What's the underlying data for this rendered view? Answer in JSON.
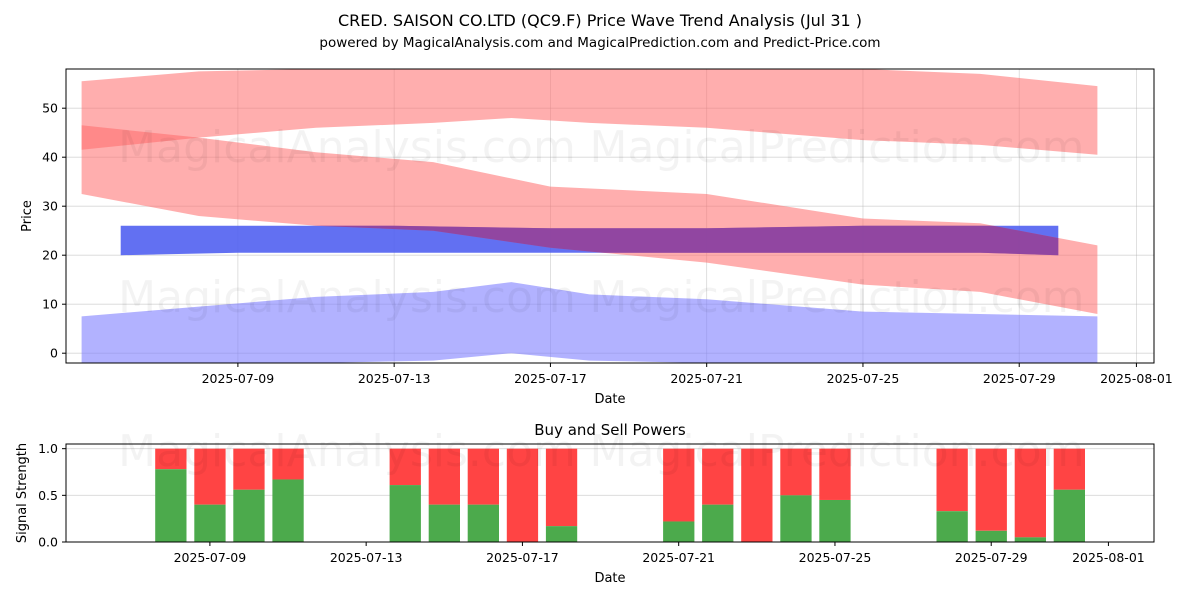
{
  "header": {
    "title": "CRED. SAISON CO.LTD (QC9.F) Price Wave Trend Analysis (Jul 31 )",
    "subtitle": "powered by MagicalAnalysis.com and MagicalPrediction.com and Predict-Price.com"
  },
  "watermarks": [
    "MagicalAnalysis.com",
    "MagicalPrediction.com"
  ],
  "colors": {
    "red_band": "#ff6b6b",
    "blue_band": "#7b7bff",
    "blue_strong": "#4c5cf0",
    "purple_overlap": "#8a3fa0",
    "buy": "#4caa4c",
    "sell": "#ff4444"
  },
  "chart_data": [
    {
      "type": "area",
      "title": "",
      "xlabel": "Date",
      "ylabel": "Price",
      "ylim": [
        -2,
        58
      ],
      "x_range": [
        "2025-07-05",
        "2025-08-01"
      ],
      "x_ticks": [
        "2025-07-09",
        "2025-07-13",
        "2025-07-17",
        "2025-07-21",
        "2025-07-25",
        "2025-07-29",
        "2025-08-01"
      ],
      "y_ticks": [
        0,
        10,
        20,
        30,
        40,
        50
      ],
      "grid": true,
      "series": [
        {
          "color": "red",
          "x": [
            "2025-07-05",
            "2025-07-08",
            "2025-07-11",
            "2025-07-14",
            "2025-07-16",
            "2025-07-18",
            "2025-07-21",
            "2025-07-25",
            "2025-07-28",
            "2025-07-31"
          ],
          "upper": [
            55.5,
            57.5,
            58,
            58,
            58,
            58,
            58,
            58,
            57,
            54.5
          ],
          "lower": [
            41.5,
            44,
            46,
            47,
            48,
            47,
            46,
            43.5,
            42.5,
            40.5
          ]
        },
        {
          "color": "red",
          "x": [
            "2025-07-05",
            "2025-07-08",
            "2025-07-11",
            "2025-07-14",
            "2025-07-17",
            "2025-07-21",
            "2025-07-25",
            "2025-07-28",
            "2025-07-31"
          ],
          "upper": [
            46.5,
            44,
            41,
            39,
            34,
            32.5,
            27.5,
            26.5,
            22
          ],
          "lower": [
            32.5,
            28,
            26,
            25,
            21.5,
            18.5,
            14,
            12.5,
            8
          ]
        },
        {
          "color": "blue",
          "x": [
            "2025-07-06",
            "2025-07-09",
            "2025-07-13",
            "2025-07-17",
            "2025-07-21",
            "2025-07-25",
            "2025-07-28",
            "2025-07-30"
          ],
          "upper": [
            26,
            26,
            26,
            25.5,
            25.5,
            26,
            26,
            26
          ],
          "lower": [
            20,
            20.5,
            20.5,
            20.5,
            20.5,
            20.5,
            20.5,
            20
          ]
        },
        {
          "color": "blue",
          "x": [
            "2025-07-05",
            "2025-07-08",
            "2025-07-11",
            "2025-07-14",
            "2025-07-16",
            "2025-07-18",
            "2025-07-21",
            "2025-07-25",
            "2025-07-28",
            "2025-07-31"
          ],
          "upper": [
            7.5,
            9.5,
            11.5,
            12.5,
            14.5,
            12,
            11,
            8.5,
            8,
            7.5
          ],
          "lower": [
            -2,
            -2,
            -2,
            -1.5,
            0,
            -1.5,
            -2,
            -2,
            -2,
            -2
          ]
        }
      ]
    },
    {
      "type": "bar",
      "title": "Buy and Sell Powers",
      "xlabel": "Date",
      "ylabel": "Signal Strength",
      "ylim": [
        0,
        1.05
      ],
      "y_ticks": [
        0.0,
        0.5,
        1.0
      ],
      "x_ticks": [
        "2025-07-09",
        "2025-07-13",
        "2025-07-17",
        "2025-07-21",
        "2025-07-25",
        "2025-07-29",
        "2025-08-01"
      ],
      "x": [
        "2025-07-08",
        "2025-07-09",
        "2025-07-10",
        "2025-07-11",
        "2025-07-14",
        "2025-07-15",
        "2025-07-16",
        "2025-07-17",
        "2025-07-18",
        "2025-07-21",
        "2025-07-22",
        "2025-07-23",
        "2025-07-24",
        "2025-07-25",
        "2025-07-28",
        "2025-07-29",
        "2025-07-30",
        "2025-07-31"
      ],
      "buy": [
        0.78,
        0.4,
        0.56,
        0.67,
        0.61,
        0.4,
        0.4,
        0.0,
        0.17,
        0.22,
        0.4,
        0.0,
        0.5,
        0.45,
        0.33,
        0.12,
        0.05,
        0.56
      ],
      "total": 1.0
    }
  ]
}
